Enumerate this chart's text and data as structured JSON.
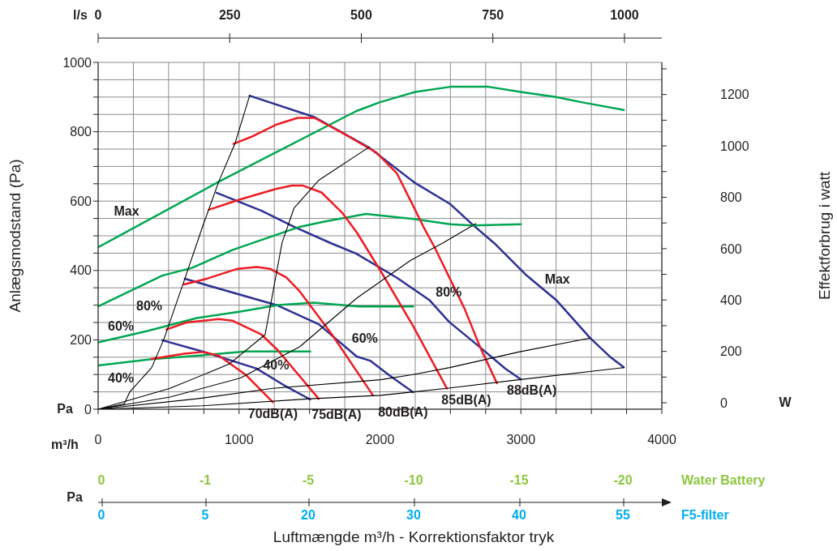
{
  "chart_data": {
    "type": "line",
    "ylabel": "Anlægsmodstand (Pa)",
    "y2label": "Effektforbrug i watt",
    "x2label": "l/s",
    "annotations": [
      "m³/h",
      "Pa",
      "W",
      "Pa",
      "Water Battery",
      "F5-filter",
      "0",
      "-1",
      "-5",
      "-10",
      "-15",
      "-20",
      "0",
      "5",
      "20",
      "30",
      "40",
      "55",
      "Luftmængde m³/h - Korrektionsfaktor tryk"
    ],
    "xlim": [
      0,
      4000
    ],
    "xticks": [
      0,
      {
        "value": 250,
        "label": null
      },
      {
        "value": 500,
        "label": null
      },
      {
        "value": 750,
        "label": null
      },
      1000,
      {
        "value": 1250,
        "label": null
      },
      {
        "value": 1500,
        "label": null
      },
      {
        "value": 1750,
        "label": null
      },
      2000,
      {
        "value": 2250,
        "label": null
      },
      {
        "value": 2500,
        "label": null
      },
      {
        "value": 2750,
        "label": null
      },
      3000,
      {
        "value": 3250,
        "label": null
      },
      {
        "value": 3500,
        "label": null
      },
      {
        "value": 3750,
        "label": null
      },
      4000
    ],
    "ylim": [
      0,
      1000
    ],
    "yticks": [
      0,
      {
        "value": 50,
        "label": null
      },
      {
        "value": 100,
        "label": null
      },
      {
        "value": 150,
        "label": null
      },
      200,
      {
        "value": 250,
        "label": null
      },
      {
        "value": 300,
        "label": null
      },
      {
        "value": 350,
        "label": null
      },
      400,
      {
        "value": 450,
        "label": null
      },
      {
        "value": 500,
        "label": null
      },
      {
        "value": 550,
        "label": null
      },
      600,
      {
        "value": 650,
        "label": null
      },
      {
        "value": 700,
        "label": null
      },
      {
        "value": 750,
        "label": null
      },
      800,
      {
        "value": 850,
        "label": null
      },
      {
        "value": 900,
        "label": null
      },
      {
        "value": 950,
        "label": null
      },
      1000
    ],
    "y2lim": [
      -25,
      1325
    ],
    "y2ticks": [
      0,
      {
        "value": 100,
        "label": null
      },
      200,
      {
        "value": 300,
        "label": null
      },
      400,
      {
        "value": 500,
        "label": null
      },
      600,
      {
        "value": 700,
        "label": null
      },
      800,
      {
        "value": 900,
        "label": null
      },
      1000,
      {
        "value": 1100,
        "label": null
      },
      1200,
      {
        "value": 1300,
        "label": null
      }
    ],
    "x2lim": [
      0,
      1071
    ],
    "x2ticks": [
      0,
      250,
      500,
      750,
      1000
    ],
    "grid": true,
    "series": [
      {
        "name": "Max",
        "color": "#2e3192",
        "x": [
          1075,
          1530,
          1920,
          2250,
          2500,
          2655,
          2810,
          3040,
          3250,
          3490,
          3630,
          3730
        ],
        "values": [
          904,
          843,
          755,
          652,
          591,
          533,
          479,
          386,
          315,
          206,
          152,
          121
        ]
      },
      {
        "name": "80%",
        "color": "#2e3192",
        "x": [
          840,
          1160,
          1390,
          1650,
          1830,
          2120,
          2350,
          2490,
          2700,
          2890,
          3000
        ],
        "values": [
          624,
          572,
          526,
          479,
          449,
          379,
          315,
          252,
          182,
          117,
          86
        ]
      },
      {
        "name": "60%",
        "color": "#2e3192",
        "x": [
          615,
          1275,
          1565,
          1835,
          1930,
          2065,
          2235
        ],
        "values": [
          376,
          299,
          245,
          152,
          140,
          98,
          49
        ]
      },
      {
        "name": "40%",
        "color": "#2e3192",
        "x": [
          455,
          760,
          1125,
          1315,
          1505
        ],
        "values": [
          199,
          164,
          117,
          70,
          28
        ]
      },
      {
        "name": "Max",
        "color": "#00a651",
        "axis": "y2",
        "x": [
          0,
          855,
          1830,
          2000,
          2250,
          2500,
          2770,
          3000,
          3250,
          3430,
          3730
        ],
        "values": [
          605,
          860,
          1135,
          1170,
          1210,
          1230,
          1230,
          1210,
          1190,
          1170,
          1140
        ]
      },
      {
        "name": "80%",
        "color": "#00a651",
        "axis": "y2",
        "x": [
          0,
          455,
          665,
          955,
          1430,
          1605,
          1900,
          2250,
          2500,
          2655,
          3000
        ],
        "values": [
          375,
          495,
          525,
          595,
          685,
          705,
          735,
          715,
          695,
          690,
          695
        ]
      },
      {
        "name": "60%",
        "color": "#00a651",
        "axis": "y2",
        "x": [
          0,
          355,
          700,
          1010,
          1275,
          1530,
          1850,
          2235
        ],
        "values": [
          235,
          280,
          330,
          355,
          380,
          390,
          375,
          375
        ]
      },
      {
        "name": "40%",
        "color": "#00a651",
        "axis": "y2",
        "x": [
          0,
          380,
          740,
          1045,
          1505
        ],
        "values": [
          145,
          170,
          185,
          200,
          200
        ]
      },
      {
        "name": "70dB(A)",
        "color": "#ed1c24",
        "x": [
          380,
          610,
          740,
          855,
          1045,
          1240
        ],
        "values": [
          145,
          160,
          165,
          155,
          100,
          20
        ]
      },
      {
        "name": "75dB(A)",
        "color": "#ed1c24",
        "x": [
          485,
          625,
          855,
          955,
          1160,
          1275,
          1565
        ],
        "values": [
          230,
          250,
          260,
          255,
          215,
          170,
          30
        ]
      },
      {
        "name": "80dB(A)",
        "color": "#ed1c24",
        "x": [
          610,
          760,
          990,
          1125,
          1220,
          1335,
          1430,
          1660,
          1950
        ],
        "values": [
          360,
          375,
          405,
          410,
          405,
          380,
          340,
          215,
          40
        ]
      },
      {
        "name": "85dB(A)",
        "color": "#ed1c24",
        "x": [
          785,
          1010,
          1260,
          1375,
          1450,
          1585,
          1735,
          1835,
          2025,
          2235,
          2475
        ],
        "values": [
          575,
          605,
          635,
          645,
          645,
          625,
          565,
          510,
          385,
          240,
          60
        ]
      },
      {
        "name": "88dB(A)",
        "color": "#ed1c24",
        "x": [
          960,
          1085,
          1260,
          1415,
          1535,
          1720,
          1975,
          2120,
          2225,
          2310,
          2390,
          2600,
          2715,
          2830
        ],
        "values": [
          765,
          785,
          820,
          840,
          840,
          800,
          740,
          680,
          595,
          525,
          465,
          290,
          175,
          75
        ]
      },
      {
        "color": "#000000",
        "x": [
          0,
          185,
          225,
          380,
          465,
          610,
          740,
          855,
          970,
          1075
        ],
        "values": [
          0,
          15,
          50,
          120,
          200,
          370,
          525,
          655,
          765,
          904
        ]
      },
      {
        "color": "#000000",
        "x": [
          0,
          510,
          930,
          1185,
          1305,
          1390,
          1565,
          1920
        ],
        "values": [
          0,
          60,
          130,
          215,
          480,
          580,
          660,
          755
        ]
      },
      {
        "color": "#000000",
        "x": [
          0,
          510,
          1010,
          1430,
          1835,
          2220,
          2450,
          2680
        ],
        "values": [
          0,
          35,
          90,
          180,
          320,
          430,
          480,
          535
        ]
      },
      {
        "color": "#000000",
        "x": [
          0,
          700,
          1240,
          2005,
          2235,
          2495,
          2985,
          3490
        ],
        "values": [
          0,
          30,
          60,
          85,
          100,
          120,
          165,
          205
        ]
      },
      {
        "color": "#000000",
        "x": [
          0,
          740,
          1505,
          2005,
          2475,
          2985,
          3730
        ],
        "values": [
          0,
          10,
          30,
          40,
          60,
          85,
          120
        ]
      }
    ]
  }
}
